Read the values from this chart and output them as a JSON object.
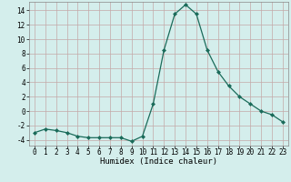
{
  "x": [
    0,
    1,
    2,
    3,
    4,
    5,
    6,
    7,
    8,
    9,
    10,
    11,
    12,
    13,
    14,
    15,
    16,
    17,
    18,
    19,
    20,
    21,
    22,
    23
  ],
  "y": [
    -3,
    -2.5,
    -2.7,
    -3,
    -3.5,
    -3.7,
    -3.7,
    -3.7,
    -3.7,
    -4.2,
    -3.5,
    1,
    8.5,
    13.5,
    14.8,
    13.5,
    8.5,
    5.5,
    3.5,
    2,
    1,
    0,
    -0.5,
    -1.5
  ],
  "line_color": "#1a6b5a",
  "marker": "D",
  "marker_size": 2.0,
  "background_color": "#d4eeec",
  "grid_color": "#c4a8a8",
  "xlabel": "Humidex (Indice chaleur)",
  "ylabel": "",
  "title": "",
  "xlim": [
    -0.5,
    23.5
  ],
  "ylim": [
    -4.8,
    15.2
  ],
  "yticks": [
    -4,
    -2,
    0,
    2,
    4,
    6,
    8,
    10,
    12,
    14
  ],
  "xticks": [
    0,
    1,
    2,
    3,
    4,
    5,
    6,
    7,
    8,
    9,
    10,
    11,
    12,
    13,
    14,
    15,
    16,
    17,
    18,
    19,
    20,
    21,
    22,
    23
  ],
  "xlabel_fontsize": 6.5,
  "tick_fontsize": 5.5,
  "line_width": 0.9
}
